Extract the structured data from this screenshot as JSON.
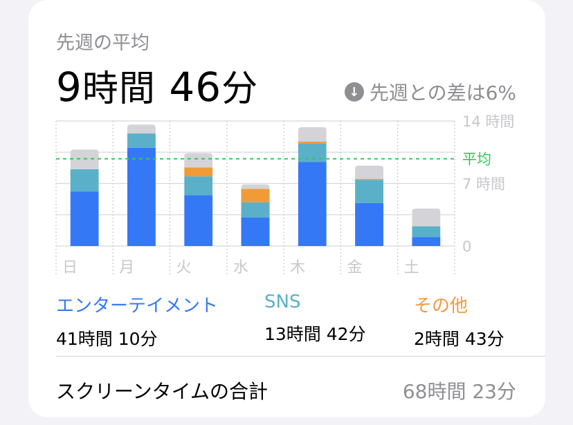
{
  "header": {
    "subtitle": "先週の平均",
    "hours": "9",
    "hours_unit": "時間",
    "minutes": "46",
    "minutes_unit": "分",
    "change_text": "先週との差は6%",
    "change_icon": "arrow-down-circle-icon"
  },
  "chart_data": {
    "type": "bar",
    "stacked": true,
    "categories": [
      "日",
      "月",
      "火",
      "水",
      "木",
      "金",
      "土"
    ],
    "series": [
      {
        "name": "エンターテイメント",
        "color": "#3478f6",
        "values": [
          6.1,
          11.0,
          5.7,
          3.2,
          9.4,
          4.8,
          1.0
        ]
      },
      {
        "name": "SNS",
        "color": "#5ab0c8",
        "values": [
          2.5,
          1.6,
          2.1,
          1.7,
          2.1,
          2.6,
          1.2
        ]
      },
      {
        "name": "その他",
        "color": "#f19a38",
        "values": [
          0.0,
          0.0,
          1.0,
          1.5,
          0.2,
          0.1,
          0.0
        ]
      },
      {
        "name": "",
        "color": "#d3d3d8",
        "values": [
          2.2,
          1.0,
          1.6,
          0.5,
          1.6,
          1.5,
          2.0
        ]
      }
    ],
    "ylim": [
      0,
      14
    ],
    "yticks": [
      {
        "value": 14,
        "label": "14 時間"
      },
      {
        "value": 7,
        "label": "7 時間"
      },
      {
        "value": 0,
        "label": "0"
      }
    ],
    "average": {
      "value": 9.77,
      "label": "平均",
      "color": "#34c759"
    },
    "grid": true
  },
  "legend": [
    {
      "label": "エンターテイメント",
      "value": "41時間 10分",
      "color": "#3478f6"
    },
    {
      "label": "SNS",
      "value": "13時間 42分",
      "color": "#5ab0c8"
    },
    {
      "label": "その他",
      "value": "2時間 43分",
      "color": "#f19a38"
    }
  ],
  "total": {
    "label": "スクリーンタイムの合計",
    "value": "68時間 23分"
  }
}
